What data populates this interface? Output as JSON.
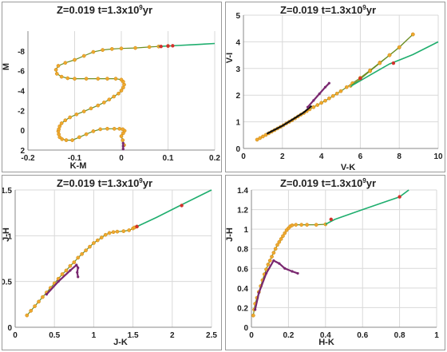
{
  "colors": {
    "tip_line": "#6b8e23",
    "tip_marker": "#f0a830",
    "tip_marker_edge": "#c98a10",
    "green_track": "#1fae6e",
    "purple_track": "#7a2870",
    "dark_track": "#111111",
    "red_marker": "#d2322d",
    "grid": "#d9d9d9"
  },
  "chart_data": [
    {
      "type": "line",
      "title_z": "Z=0.019",
      "title_t_prefix": "t=1.3x10",
      "title_t_exp": "9",
      "title_t_suffix": "yr",
      "xlabel": "K-M",
      "ylabel": "M",
      "xlim": [
        -0.2,
        0.2
      ],
      "ylim": [
        2,
        -10
      ],
      "y_inverted": true,
      "xticks": [
        -0.2,
        -0.1,
        0,
        0.1,
        0.2
      ],
      "xtick_labels": [
        "-0.2",
        "-0.1",
        "0",
        "0.1",
        "0.2"
      ],
      "yticks": [
        -8,
        -6,
        -4,
        -2,
        0,
        2
      ],
      "ytick_labels": [
        "-8",
        "-6",
        "-4",
        "-2",
        "0",
        "2"
      ],
      "grid": "vertical",
      "series": [
        {
          "role": "tip",
          "x": [
            0.006,
            0.003,
            0.0,
            0.004,
            0.007,
            0.003,
            -0.004,
            -0.015,
            -0.03,
            -0.045,
            -0.06,
            -0.075,
            -0.09,
            -0.105,
            -0.118,
            -0.127,
            -0.132,
            -0.134,
            -0.135,
            -0.134,
            -0.132,
            -0.128,
            -0.12,
            -0.11,
            -0.096,
            -0.08,
            -0.065,
            -0.05,
            -0.037,
            -0.026,
            -0.016,
            -0.006,
            0.0,
            0.004,
            0.006,
            0.004,
            0.0,
            -0.012,
            -0.03,
            -0.05,
            -0.075,
            -0.1,
            -0.115,
            -0.128,
            -0.138,
            -0.14,
            -0.135,
            -0.12,
            -0.1,
            -0.08,
            -0.06,
            -0.04,
            -0.02,
            0.0,
            0.03,
            0.06,
            0.08,
            0.1
          ],
          "y": [
            1.5,
            1.0,
            0.6,
            0.3,
            0.05,
            -0.1,
            -0.15,
            -0.15,
            -0.15,
            -0.1,
            0.1,
            0.4,
            0.7,
            1.0,
            1.0,
            0.9,
            0.7,
            0.4,
            0.1,
            -0.1,
            -0.4,
            -0.7,
            -1.0,
            -1.3,
            -1.6,
            -1.9,
            -2.2,
            -2.5,
            -2.8,
            -3.1,
            -3.4,
            -3.7,
            -4.0,
            -4.3,
            -4.6,
            -4.9,
            -5.1,
            -5.2,
            -5.2,
            -5.2,
            -5.2,
            -5.2,
            -5.25,
            -5.4,
            -5.7,
            -6.1,
            -6.5,
            -6.8,
            -7.1,
            -7.5,
            -7.9,
            -8.1,
            -8.2,
            -8.25,
            -8.3,
            -8.4,
            -8.45,
            -8.5
          ]
        },
        {
          "role": "green",
          "x": [
            0.08,
            0.12,
            0.16,
            0.2
          ],
          "y": [
            -8.45,
            -8.55,
            -8.65,
            -8.75
          ]
        },
        {
          "role": "purple",
          "x": [
            0.004,
            0.004,
            0.004
          ],
          "y": [
            1.9,
            1.6,
            1.3
          ]
        }
      ],
      "markers": [
        {
          "x": 0.085,
          "y": -8.45
        },
        {
          "x": 0.1,
          "y": -8.5
        },
        {
          "x": 0.11,
          "y": -8.52
        }
      ]
    },
    {
      "type": "line",
      "title_z": "Z=0.019",
      "title_t_prefix": "t=1.3x10",
      "title_t_exp": "9",
      "title_t_suffix": "yr",
      "xlabel": "V-K",
      "ylabel": "V-I",
      "xlim": [
        0,
        10
      ],
      "ylim": [
        0,
        5
      ],
      "y_inverted": false,
      "xticks": [
        0,
        2,
        4,
        6,
        8,
        10
      ],
      "xtick_labels": [
        "0",
        "2",
        "4",
        "6",
        "8",
        "10"
      ],
      "yticks": [
        0,
        1,
        2,
        3,
        4,
        5
      ],
      "ytick_labels": [
        "0",
        "1",
        "2",
        "3",
        "4",
        "5"
      ],
      "grid": "both",
      "series": [
        {
          "role": "tip",
          "x": [
            0.7,
            0.85,
            1.0,
            1.15,
            1.3,
            1.45,
            1.6,
            1.75,
            1.9,
            2.05,
            2.2,
            2.35,
            2.5,
            2.65,
            2.8,
            2.95,
            3.1,
            3.25,
            3.4,
            3.6,
            3.8,
            4.0,
            4.2,
            4.4,
            4.6,
            4.8,
            5.0,
            5.3,
            5.6,
            6.0,
            6.5,
            7.0,
            7.5,
            8.0,
            8.7
          ],
          "y": [
            0.33,
            0.39,
            0.45,
            0.51,
            0.57,
            0.63,
            0.69,
            0.75,
            0.81,
            0.87,
            0.94,
            1.0,
            1.06,
            1.13,
            1.2,
            1.27,
            1.33,
            1.4,
            1.47,
            1.55,
            1.63,
            1.71,
            1.79,
            1.88,
            1.97,
            2.06,
            2.15,
            2.3,
            2.45,
            2.65,
            2.93,
            3.22,
            3.5,
            3.79,
            4.28
          ]
        },
        {
          "role": "tip2",
          "x": [
            5.5,
            6.0,
            6.5,
            7.0,
            7.5,
            8.0,
            8.7
          ],
          "y": [
            2.35,
            2.6,
            2.9,
            3.2,
            3.5,
            3.8,
            4.28
          ]
        },
        {
          "role": "green",
          "x": [
            5.5,
            6.5,
            7.5,
            8.7,
            10.0
          ],
          "y": [
            2.33,
            2.75,
            3.17,
            3.52,
            4.0
          ]
        },
        {
          "role": "dark",
          "x": [
            1.2,
            2.0,
            2.6,
            3.1,
            3.5
          ],
          "y": [
            0.55,
            0.85,
            1.12,
            1.35,
            1.6
          ]
        },
        {
          "role": "purple",
          "x": [
            3.3,
            3.6,
            3.9,
            4.2,
            4.4
          ],
          "y": [
            1.55,
            1.8,
            2.05,
            2.3,
            2.45
          ]
        }
      ],
      "markers": [
        {
          "x": 6.0,
          "y": 2.63
        },
        {
          "x": 7.7,
          "y": 3.2
        }
      ]
    },
    {
      "type": "line",
      "title_z": "Z=0.019",
      "title_t_prefix": "t=1.3x10",
      "title_t_exp": "9",
      "title_t_suffix": "yr",
      "xlabel": "J-K",
      "ylabel": "J-H",
      "xlim": [
        0,
        2.5
      ],
      "ylim": [
        0,
        1.5
      ],
      "y_inverted": false,
      "xticks": [
        0,
        0.5,
        1,
        1.5,
        2,
        2.5
      ],
      "xtick_labels": [
        "0",
        "0.5",
        "1",
        "1.5",
        "2",
        "2.5"
      ],
      "yticks": [
        0,
        0.5,
        1,
        1.5
      ],
      "ytick_labels": [
        "0",
        "0.5",
        "1",
        "1.5"
      ],
      "grid": "both",
      "series": [
        {
          "role": "tip",
          "x": [
            0.15,
            0.2,
            0.25,
            0.3,
            0.35,
            0.4,
            0.45,
            0.5,
            0.55,
            0.6,
            0.65,
            0.7,
            0.75,
            0.8,
            0.85,
            0.9,
            0.95,
            1.0,
            1.05,
            1.1,
            1.15,
            1.2,
            1.25,
            1.3,
            1.38,
            1.45,
            1.5,
            1.52,
            1.55
          ],
          "y": [
            0.13,
            0.18,
            0.23,
            0.28,
            0.33,
            0.38,
            0.43,
            0.48,
            0.53,
            0.58,
            0.62,
            0.67,
            0.71,
            0.76,
            0.8,
            0.84,
            0.88,
            0.92,
            0.95,
            0.98,
            1.01,
            1.03,
            1.04,
            1.045,
            1.05,
            1.06,
            1.08,
            1.09,
            1.1
          ]
        },
        {
          "role": "green",
          "x": [
            1.55,
            1.8,
            2.1,
            2.5
          ],
          "y": [
            1.1,
            1.2,
            1.33,
            1.5
          ]
        },
        {
          "role": "purple",
          "x": [
            0.4,
            0.55,
            0.7,
            0.78,
            0.8,
            0.79,
            0.8
          ],
          "y": [
            0.36,
            0.5,
            0.62,
            0.68,
            0.65,
            0.6,
            0.55
          ]
        }
      ],
      "markers": [
        {
          "x": 1.55,
          "y": 1.1
        },
        {
          "x": 2.12,
          "y": 1.33
        }
      ]
    },
    {
      "type": "line",
      "title_z": "Z=0.019",
      "title_t_prefix": "t=1.3x10",
      "title_t_exp": "9",
      "title_t_suffix": "yr",
      "xlabel": "H-K",
      "ylabel": "J-H",
      "xlim": [
        0,
        1
      ],
      "ylim": [
        0,
        1.4
      ],
      "y_inverted": false,
      "xticks": [
        0,
        0.2,
        0.4,
        0.6,
        0.8,
        1
      ],
      "xtick_labels": [
        "0",
        "0.2",
        "0.4",
        "0.6",
        "0.8",
        "1"
      ],
      "yticks": [
        0,
        0.2,
        0.4,
        0.6,
        0.8,
        1,
        1.2,
        1.4
      ],
      "ytick_labels": [
        "0",
        "0.2",
        "0.4",
        "0.6",
        "0.8",
        "1",
        "1.2",
        "1.4"
      ],
      "grid": "both",
      "series": [
        {
          "role": "tip",
          "x": [
            0.01,
            0.015,
            0.02,
            0.03,
            0.04,
            0.05,
            0.06,
            0.07,
            0.08,
            0.09,
            0.1,
            0.11,
            0.12,
            0.13,
            0.14,
            0.15,
            0.16,
            0.17,
            0.18,
            0.19,
            0.2,
            0.21,
            0.22,
            0.24,
            0.27,
            0.3,
            0.35,
            0.4
          ],
          "y": [
            0.12,
            0.18,
            0.24,
            0.3,
            0.36,
            0.42,
            0.48,
            0.54,
            0.59,
            0.64,
            0.68,
            0.72,
            0.76,
            0.8,
            0.84,
            0.87,
            0.9,
            0.93,
            0.96,
            0.99,
            1.01,
            1.03,
            1.04,
            1.045,
            1.045,
            1.045,
            1.045,
            1.05
          ]
        },
        {
          "role": "green",
          "x": [
            0.4,
            0.45,
            0.6,
            0.8,
            0.85
          ],
          "y": [
            1.05,
            1.1,
            1.2,
            1.33,
            1.4
          ]
        },
        {
          "role": "purple",
          "x": [
            0.02,
            0.04,
            0.08,
            0.12,
            0.15,
            0.18,
            0.22,
            0.25
          ],
          "y": [
            0.18,
            0.35,
            0.55,
            0.68,
            0.65,
            0.6,
            0.57,
            0.55
          ]
        }
      ],
      "markers": [
        {
          "x": 0.43,
          "y": 1.1
        },
        {
          "x": 0.8,
          "y": 1.33
        }
      ]
    }
  ]
}
